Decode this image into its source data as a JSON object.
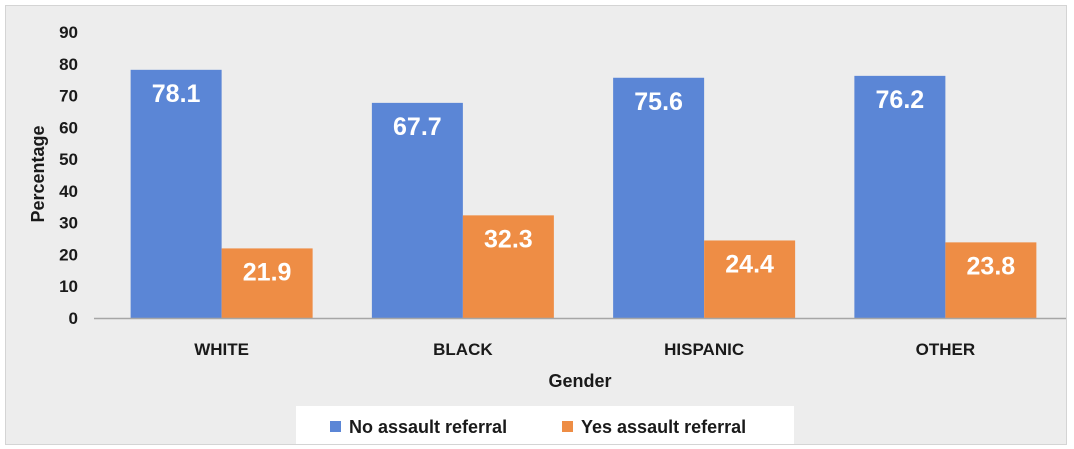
{
  "chart_data": {
    "type": "bar",
    "categories": [
      "WHITE",
      "BLACK",
      "HISPANIC",
      "OTHER"
    ],
    "series": [
      {
        "name": "No assault referral",
        "values": [
          78.1,
          67.7,
          75.6,
          76.2
        ],
        "color": "#5b86d6"
      },
      {
        "name": "Yes assault referral",
        "values": [
          21.9,
          32.3,
          24.4,
          23.8
        ],
        "color": "#ee8d45"
      }
    ],
    "data_labels": [
      [
        "78.1",
        "67.7",
        "75.6",
        "76.2"
      ],
      [
        "21.9",
        "32.3",
        "24.4",
        "23.8"
      ]
    ],
    "xlabel": "Gender",
    "ylabel": "Percentage",
    "ylim": [
      0,
      90
    ],
    "yticks": [
      0,
      10,
      20,
      30,
      40,
      50,
      60,
      70,
      80,
      90
    ],
    "grid": false,
    "legend_position": "bottom"
  },
  "colors": {
    "background": "#ededed",
    "legend_background": "#ffffff",
    "axis_line": "#a6a6a6"
  }
}
